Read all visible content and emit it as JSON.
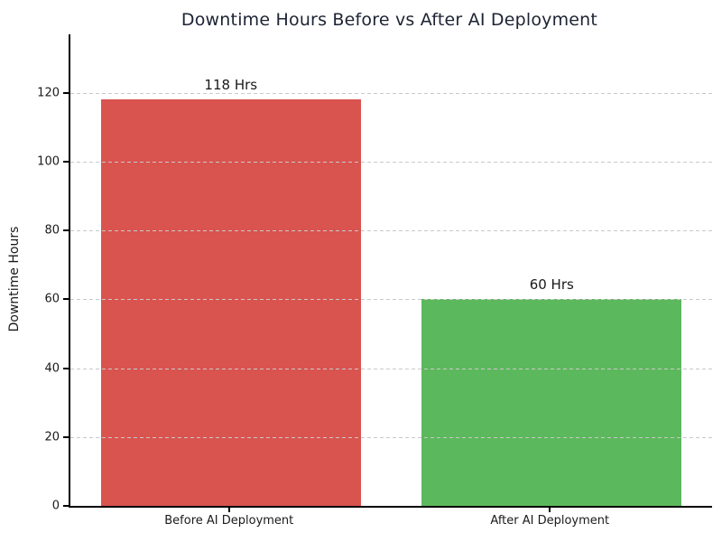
{
  "figure": {
    "background_color": "#ffffff"
  },
  "chart_data": {
    "type": "bar",
    "title": "Downtime Hours Before vs After AI Deployment",
    "categories": [
      "Before AI Deployment",
      "After AI Deployment"
    ],
    "values": [
      118,
      60
    ],
    "value_labels": [
      "118 Hrs",
      "60 Hrs"
    ],
    "bar_colors": [
      "#d9534f",
      "#5cb85c"
    ],
    "ylabel": "Downtime Hours",
    "xlabel": "",
    "ylim": [
      0,
      137
    ],
    "yticks": [
      0,
      20,
      40,
      60,
      80,
      100,
      120
    ],
    "bar_width_fraction": 0.81,
    "grid": {
      "axis": "y",
      "style": "dashed",
      "color": "#c9c9c9",
      "above_bars": true
    },
    "legend": "none",
    "title_color": "#1c2333",
    "text_color": "#1a1a1a",
    "spine_color": "#000000"
  }
}
